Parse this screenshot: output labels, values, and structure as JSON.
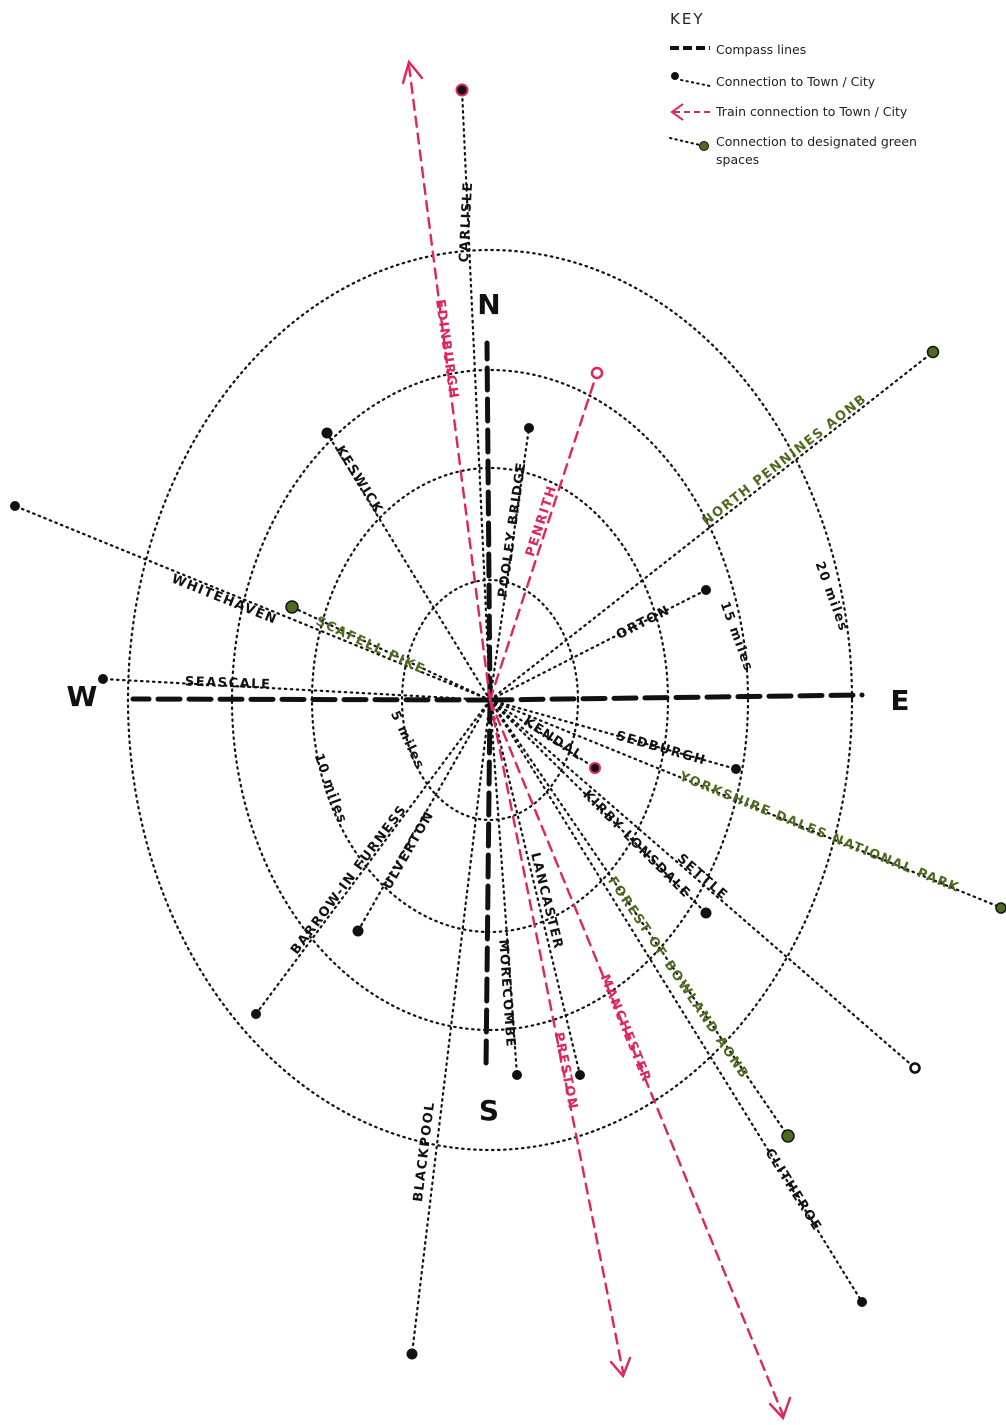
{
  "colors": {
    "ink": "#111111",
    "train": "#e0245e",
    "green": "#4d6b1f"
  },
  "key": {
    "title": "KEY",
    "items": [
      {
        "label": "Compass lines",
        "style": "compass"
      },
      {
        "label": "Connection to Town / City",
        "style": "town"
      },
      {
        "label": "Train connection to Town / City",
        "style": "train"
      },
      {
        "label": "Connection to designated green",
        "label2": "spaces",
        "style": "green"
      }
    ]
  },
  "compass": {
    "n": "N",
    "s": "S",
    "e": "E",
    "w": "W"
  },
  "rings": [
    {
      "label": "5 miles"
    },
    {
      "label": "10 miles"
    },
    {
      "label": "15 miles"
    },
    {
      "label": "20 miles"
    }
  ],
  "towns": [
    {
      "label": "CARLISLE"
    },
    {
      "label": "KESWICK"
    },
    {
      "label": "POOLEY BRIDGE"
    },
    {
      "label": "WHITEHAVEN"
    },
    {
      "label": "SEASCALE"
    },
    {
      "label": "ORTON"
    },
    {
      "label": "KENDAL"
    },
    {
      "label": "SEDBURGH"
    },
    {
      "label": "KIRBY LONSDALE"
    },
    {
      "label": "SETTLE"
    },
    {
      "label": "ULVERTON"
    },
    {
      "label": "BARROW-IN FURNESS"
    },
    {
      "label": "BLACKPOOL"
    },
    {
      "label": "MORECOMBE"
    },
    {
      "label": "LANCASTER"
    },
    {
      "label": "CLITHEROE"
    }
  ],
  "trains": [
    {
      "label": "EDINBURGH"
    },
    {
      "label": "PENRITH"
    },
    {
      "label": "PRESTON"
    },
    {
      "label": "MANCHESTER"
    }
  ],
  "green_spaces": [
    {
      "label": "NORTH PENNINES AONB"
    },
    {
      "label": "SCAFELL PIKE"
    },
    {
      "label": "YORKSHIRE DALES NATIONAL PARK"
    },
    {
      "label": "FOREST OF BOWLAND AONB"
    }
  ]
}
